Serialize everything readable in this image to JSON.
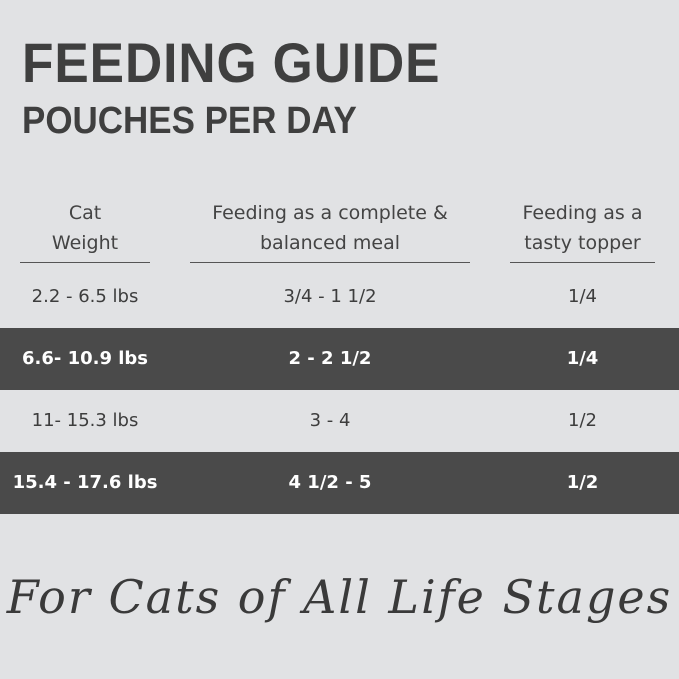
{
  "header": {
    "title": "FEEDING GUIDE",
    "subtitle": "POUCHES PER DAY"
  },
  "table": {
    "columns": [
      [
        "Cat",
        "Weight"
      ],
      [
        "Feeding as a complete &",
        "balanced meal"
      ],
      [
        "Feeding as a",
        "tasty topper"
      ]
    ],
    "rows": [
      [
        "2.2 - 6.5 lbs",
        "3/4 - 1 1/2",
        "1/4"
      ],
      [
        "6.6- 10.9 lbs",
        "2 - 2 1/2",
        "1/4"
      ],
      [
        "11- 15.3 lbs",
        "3 - 4",
        "1/2"
      ],
      [
        "15.4 - 17.6 lbs",
        "4 1/2 - 5",
        "1/2"
      ]
    ]
  },
  "footer": {
    "tagline": "For Cats of All Life Stages"
  }
}
